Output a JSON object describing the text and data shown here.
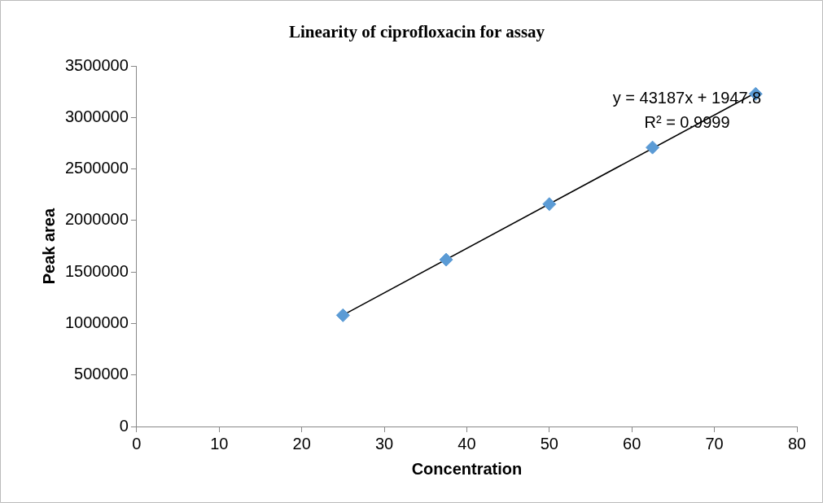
{
  "chart_data": {
    "type": "scatter",
    "title": "Linearity of ciprofloxacin for assay",
    "xlabel": "Concentration",
    "ylabel": "Peak area",
    "x": [
      25,
      37.5,
      50,
      62.5,
      75
    ],
    "series": [
      {
        "color": "#5b9bd5",
        "values": [
          1080000,
          1620000,
          2160000,
          2710000,
          3230000
        ]
      },
      {
        "type": "line",
        "color": "#000000",
        "x": [
          25,
          75
        ],
        "values": [
          1082000,
          3241000
        ],
        "marker": "none"
      }
    ],
    "xlim": [
      0,
      80
    ],
    "xticks": [
      0,
      10,
      20,
      30,
      40,
      50,
      60,
      70,
      80
    ],
    "ylim": [
      0,
      3500000
    ],
    "yticks": [
      0,
      500000,
      1000000,
      1500000,
      2000000,
      2500000,
      3000000,
      3500000
    ],
    "annotations": [
      "y = 43187x + 1947.8",
      "R² = 0.9999"
    ],
    "grid": false,
    "legend": false,
    "marker": "diamond"
  }
}
